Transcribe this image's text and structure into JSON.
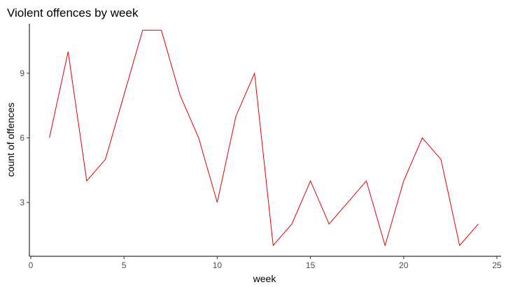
{
  "chart_data": {
    "type": "line",
    "title": "Violent offences by week",
    "xlabel": "week",
    "ylabel": "count of offences",
    "xlim": [
      0,
      25
    ],
    "ylim": [
      0.5,
      11.3
    ],
    "xticks": [
      0,
      5,
      10,
      15,
      20,
      25
    ],
    "yticks": [
      3,
      6,
      9
    ],
    "grid": false,
    "line_color": "#e00000",
    "series": [
      {
        "x": [
          1,
          2,
          3,
          4,
          5,
          6,
          7,
          8,
          9,
          10,
          11,
          12,
          13,
          14,
          15,
          16,
          17,
          18,
          19,
          20,
          21,
          22,
          23,
          24
        ],
        "values": [
          6,
          10,
          4,
          5,
          8,
          11,
          11,
          8,
          6,
          3,
          7,
          9,
          1,
          2,
          4,
          2,
          3,
          4,
          1,
          4,
          6,
          5,
          1,
          2
        ]
      }
    ]
  }
}
